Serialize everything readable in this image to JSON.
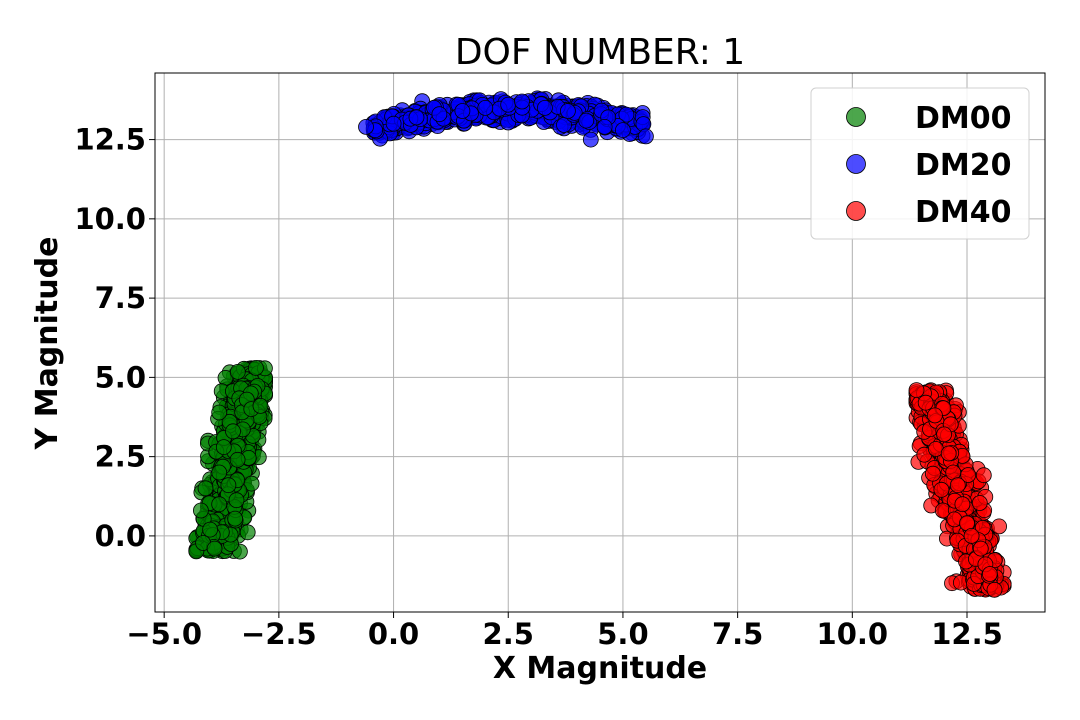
{
  "chart_data": {
    "type": "scatter",
    "title": "DOF NUMBER: 1",
    "xlabel": "X Magnitude",
    "ylabel": "Y Magnitude",
    "xlim": [
      -5.2,
      14.2
    ],
    "ylim": [
      -2.4,
      14.6
    ],
    "xticks": [
      -5.0,
      -2.5,
      0.0,
      2.5,
      5.0,
      7.5,
      10.0,
      12.5
    ],
    "xtick_labels": [
      "−5.0",
      "−2.5",
      "0.0",
      "2.5",
      "5.0",
      "7.5",
      "10.0",
      "12.5"
    ],
    "yticks": [
      0.0,
      2.5,
      5.0,
      7.5,
      10.0,
      12.5
    ],
    "ytick_labels": [
      "0.0",
      "2.5",
      "5.0",
      "7.5",
      "10.0",
      "12.5"
    ],
    "grid": true,
    "legend_position": "top-right",
    "series": [
      {
        "name": "DM00",
        "color": "#008000",
        "cluster": {
          "center": [
            -3.6,
            2.2
          ],
          "x_range": [
            -4.3,
            -2.8
          ],
          "y_range": [
            -0.5,
            5.3
          ],
          "trend": "rising"
        },
        "points": [
          [
            -4.2,
            0.8
          ],
          [
            -4.1,
            1.5
          ],
          [
            -4.0,
            0.2
          ],
          [
            -3.9,
            -0.4
          ],
          [
            -3.8,
            1.0
          ],
          [
            -3.8,
            2.0
          ],
          [
            -3.7,
            2.8
          ],
          [
            -3.6,
            1.6
          ],
          [
            -3.5,
            3.3
          ],
          [
            -3.4,
            2.4
          ],
          [
            -3.3,
            3.9
          ],
          [
            -3.2,
            4.3
          ],
          [
            -3.1,
            4.0
          ],
          [
            -3.0,
            5.3
          ],
          [
            -2.9,
            4.1
          ]
        ]
      },
      {
        "name": "DM20",
        "color": "#0000ff",
        "cluster": {
          "center": [
            2.6,
            13.15
          ],
          "x_range": [
            -0.7,
            5.6
          ],
          "y_range": [
            12.5,
            13.8
          ],
          "trend": "arc"
        },
        "points": [
          [
            -0.6,
            12.9
          ],
          [
            0.0,
            13.0
          ],
          [
            0.5,
            13.2
          ],
          [
            1.0,
            13.3
          ],
          [
            1.5,
            13.4
          ],
          [
            2.0,
            13.5
          ],
          [
            2.5,
            13.6
          ],
          [
            2.8,
            13.7
          ],
          [
            3.3,
            13.5
          ],
          [
            3.8,
            13.4
          ],
          [
            4.2,
            13.1
          ],
          [
            4.6,
            12.9
          ],
          [
            5.0,
            12.8
          ],
          [
            5.5,
            12.6
          ],
          [
            4.3,
            12.5
          ]
        ]
      },
      {
        "name": "DM40",
        "color": "#ff0000",
        "cluster": {
          "center": [
            12.4,
            1.5
          ],
          "x_range": [
            11.4,
            13.3
          ],
          "y_range": [
            -1.7,
            4.6
          ],
          "trend": "falling"
        },
        "points": [
          [
            11.4,
            4.6
          ],
          [
            11.6,
            4.2
          ],
          [
            11.8,
            3.8
          ],
          [
            12.0,
            3.2
          ],
          [
            12.1,
            2.6
          ],
          [
            12.2,
            2.0
          ],
          [
            12.3,
            1.6
          ],
          [
            12.4,
            1.0
          ],
          [
            12.5,
            0.4
          ],
          [
            12.6,
            0.0
          ],
          [
            12.8,
            -0.4
          ],
          [
            12.9,
            -0.9
          ],
          [
            13.0,
            -1.2
          ],
          [
            13.1,
            -1.7
          ],
          [
            13.2,
            0.3
          ]
        ]
      }
    ]
  }
}
